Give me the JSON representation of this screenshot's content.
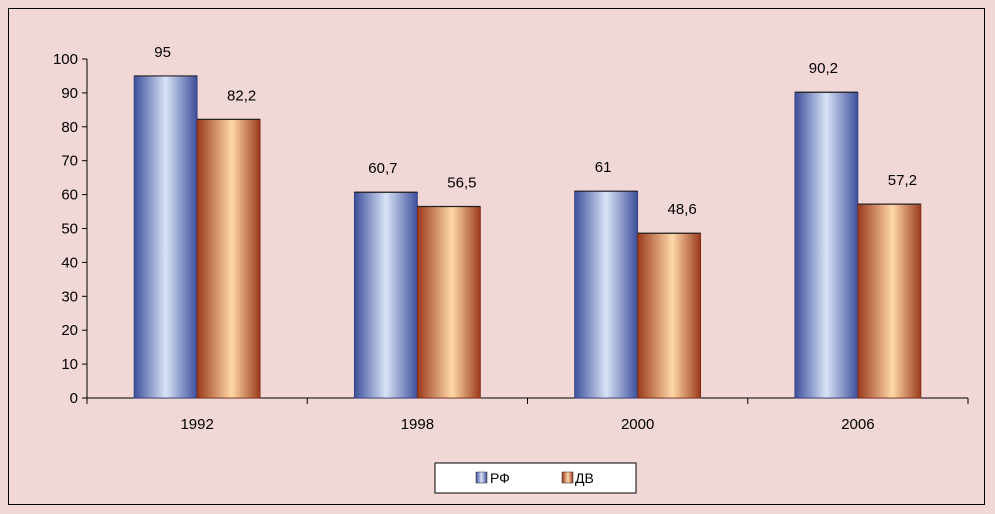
{
  "chart_data": {
    "type": "bar",
    "categories": [
      "1992",
      "1998",
      "2000",
      "2006"
    ],
    "series": [
      {
        "name": "РФ",
        "values": [
          95,
          60.7,
          61,
          90.2
        ],
        "labels": [
          "95",
          "60,7",
          "61",
          "90,2"
        ],
        "color_light": "#d9e3f7",
        "color_dark": "#3d4f9b"
      },
      {
        "name": "ДВ",
        "values": [
          82.2,
          56.5,
          48.6,
          57.2
        ],
        "labels": [
          "82,2",
          "56,5",
          "48,6",
          "57,2"
        ],
        "color_light": "#ffd8a8",
        "color_dark": "#9a3a1d"
      }
    ],
    "yticks": [
      "0",
      "10",
      "20",
      "30",
      "40",
      "50",
      "60",
      "70",
      "80",
      "90",
      "100"
    ],
    "ylim": [
      0,
      100
    ],
    "title": "",
    "xlabel": "",
    "ylabel": "",
    "grid": false,
    "legend": "bottom-center"
  },
  "colors": {
    "background": "#f2d7d7",
    "axis": "#000000"
  }
}
